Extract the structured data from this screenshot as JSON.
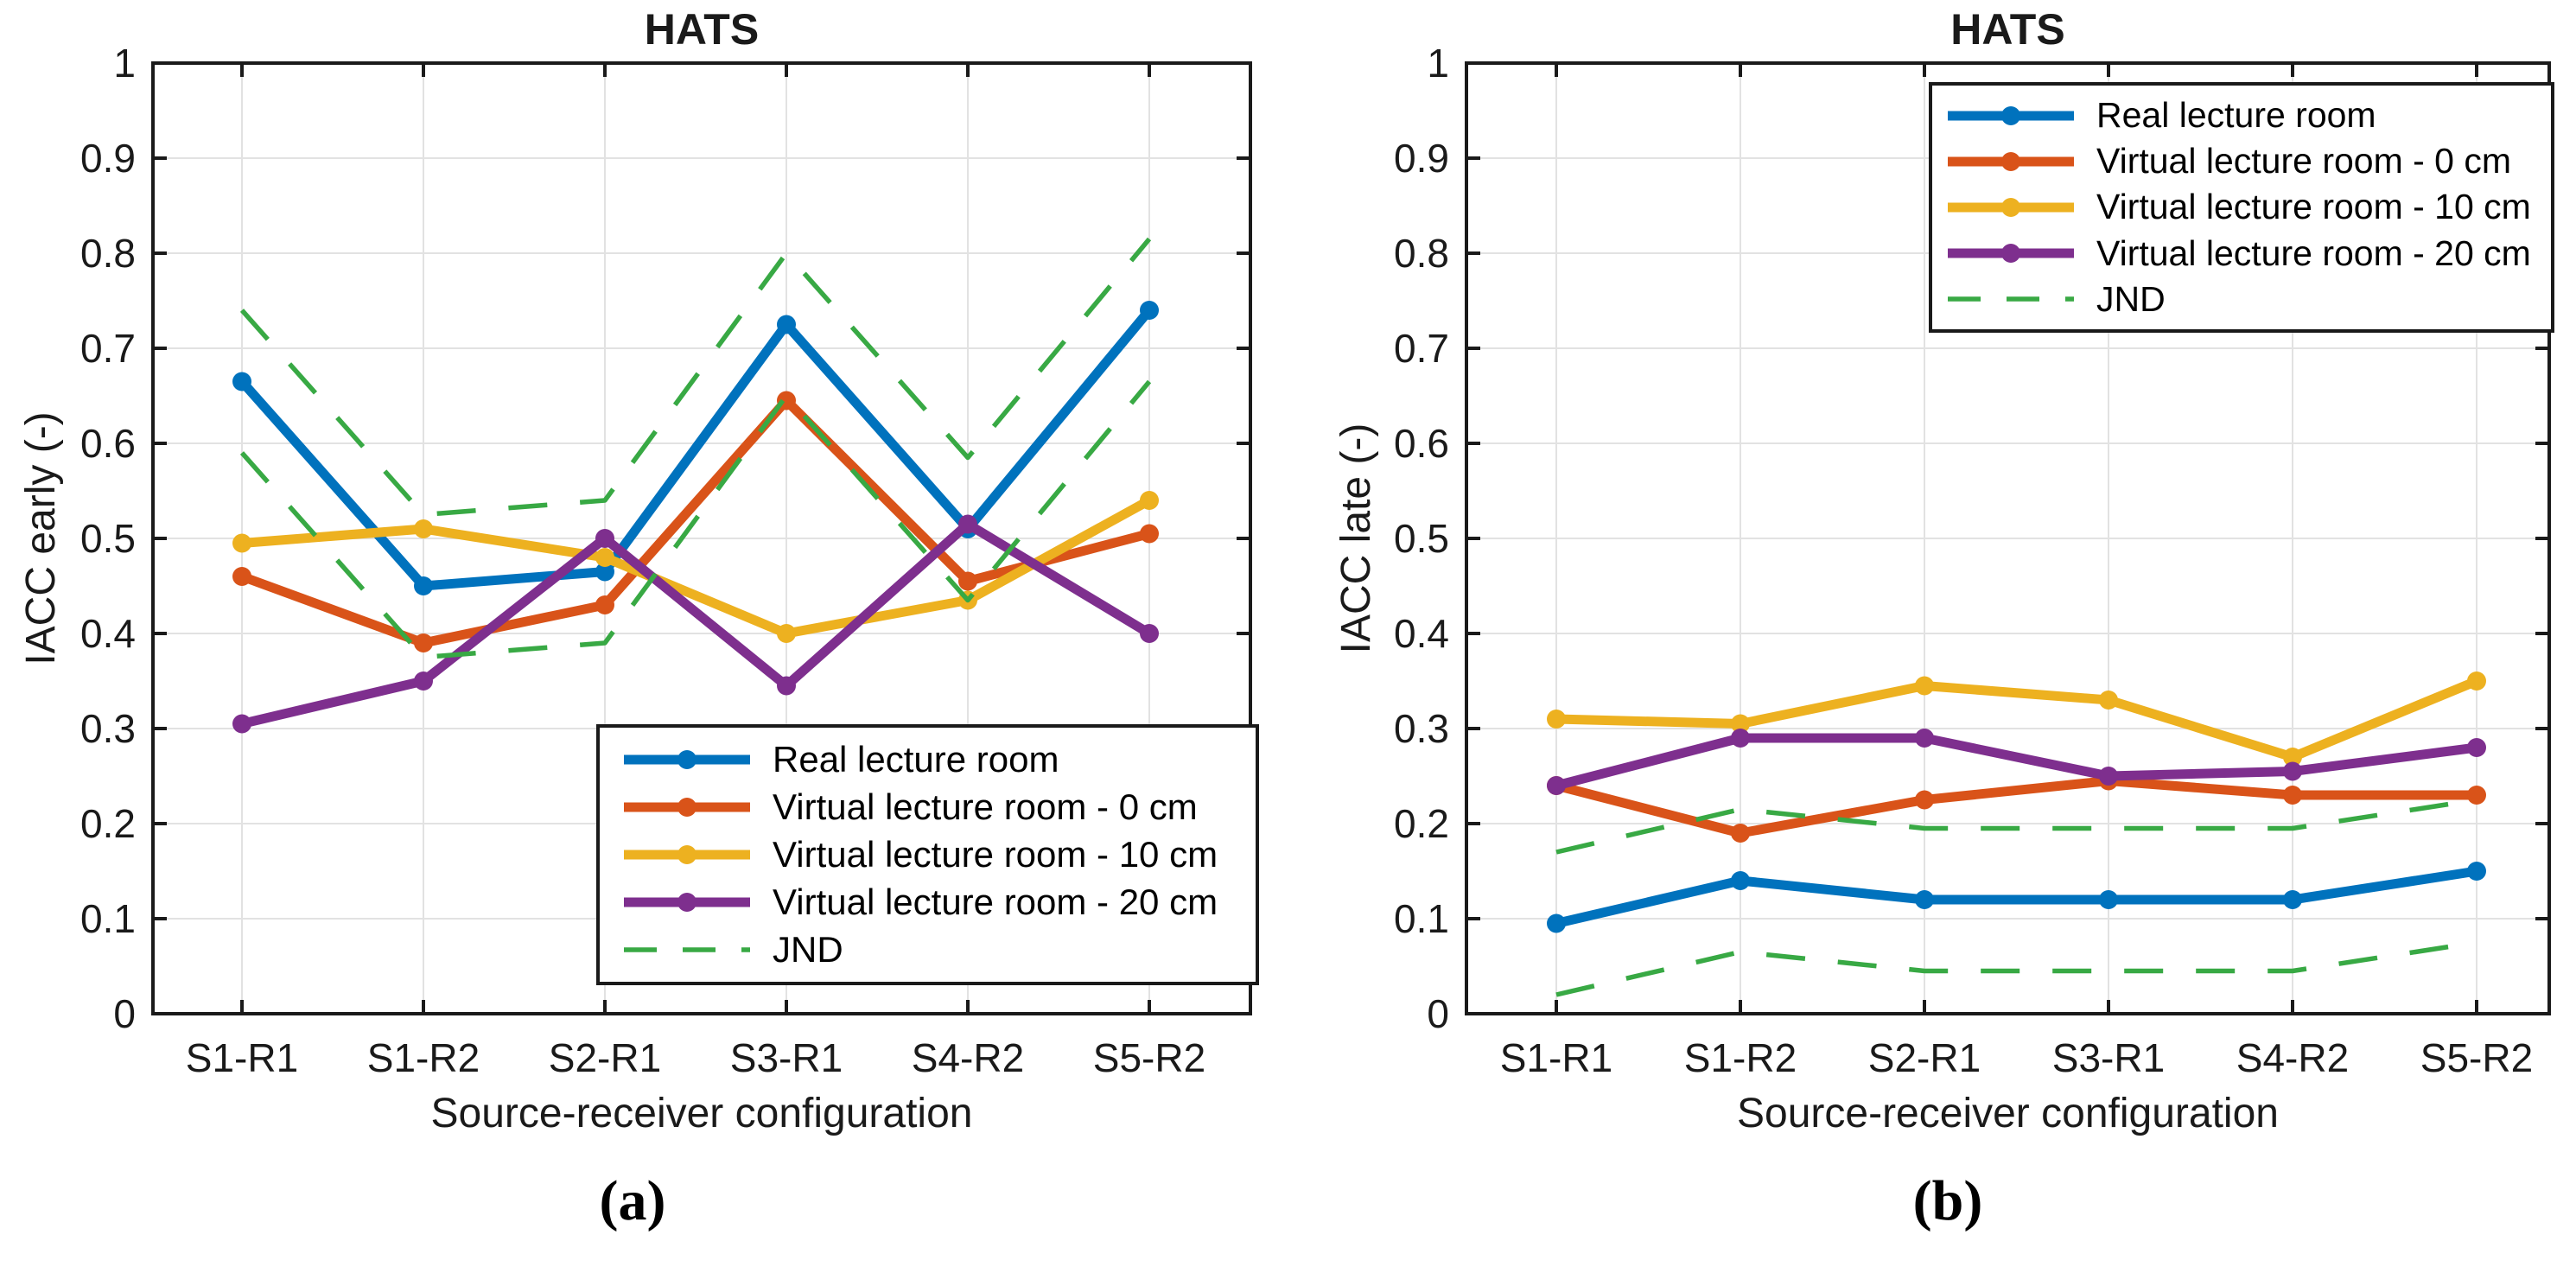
{
  "figure": {
    "captions": {
      "a": "(a)",
      "b": "(b)"
    }
  },
  "colors": {
    "real": "#0072BD",
    "virtual_0cm": "#D95319",
    "virtual_10cm": "#EDB120",
    "virtual_20cm": "#7E2F8E",
    "jnd": "#38A944",
    "grid": "#E2E2E2",
    "axis": "#1A1A1A"
  },
  "chart_data": [
    {
      "type": "line",
      "panel": "a",
      "title": "HATS",
      "xlabel": "Source-receiver configuration",
      "ylabel": "IACC early (-)",
      "ylim": [
        0,
        1
      ],
      "ytick_step": 0.1,
      "grid": true,
      "legend_position": "south-east",
      "categories": [
        "S1-R1",
        "S1-R2",
        "S2-R1",
        "S3-R1",
        "S4-R2",
        "S5-R2"
      ],
      "series": [
        {
          "name": "Real lecture room",
          "color": "#0072BD",
          "style": "solid",
          "marker": true,
          "values": [
            0.665,
            0.45,
            0.465,
            0.725,
            0.51,
            0.74
          ]
        },
        {
          "name": "Virtual lecture room - 0 cm",
          "color": "#D95319",
          "style": "solid",
          "marker": true,
          "values": [
            0.46,
            0.39,
            0.43,
            0.645,
            0.455,
            0.505
          ]
        },
        {
          "name": "Virtual lecture room - 10 cm",
          "color": "#EDB120",
          "style": "solid",
          "marker": true,
          "values": [
            0.495,
            0.51,
            0.48,
            0.4,
            0.435,
            0.54
          ]
        },
        {
          "name": "Virtual lecture room - 20 cm",
          "color": "#7E2F8E",
          "style": "solid",
          "marker": true,
          "values": [
            0.305,
            0.35,
            0.5,
            0.345,
            0.515,
            0.4
          ]
        },
        {
          "name": "JND",
          "color": "#38A944",
          "style": "dashed",
          "marker": false,
          "upper": [
            0.74,
            0.525,
            0.54,
            0.8,
            0.585,
            0.815
          ],
          "lower": [
            0.59,
            0.375,
            0.39,
            0.65,
            0.435,
            0.665
          ]
        }
      ]
    },
    {
      "type": "line",
      "panel": "b",
      "title": "HATS",
      "xlabel": "Source-receiver configuration",
      "ylabel": "IACC late (-)",
      "ylim": [
        0,
        1
      ],
      "ytick_step": 0.1,
      "grid": true,
      "legend_position": "north-east",
      "categories": [
        "S1-R1",
        "S1-R2",
        "S2-R1",
        "S3-R1",
        "S4-R2",
        "S5-R2"
      ],
      "series": [
        {
          "name": "Real lecture room",
          "color": "#0072BD",
          "style": "solid",
          "marker": true,
          "values": [
            0.095,
            0.14,
            0.12,
            0.12,
            0.12,
            0.15
          ]
        },
        {
          "name": "Virtual lecture room - 0 cm",
          "color": "#D95319",
          "style": "solid",
          "marker": true,
          "values": [
            0.24,
            0.19,
            0.225,
            0.245,
            0.23,
            0.23
          ]
        },
        {
          "name": "Virtual lecture room - 10 cm",
          "color": "#EDB120",
          "style": "solid",
          "marker": true,
          "values": [
            0.31,
            0.305,
            0.345,
            0.33,
            0.27,
            0.35
          ]
        },
        {
          "name": "Virtual lecture room - 20 cm",
          "color": "#7E2F8E",
          "style": "solid",
          "marker": true,
          "values": [
            0.24,
            0.29,
            0.29,
            0.25,
            0.255,
            0.28
          ]
        },
        {
          "name": "JND",
          "color": "#38A944",
          "style": "dashed",
          "marker": false,
          "upper": [
            0.17,
            0.215,
            0.195,
            0.195,
            0.195,
            0.225
          ],
          "lower": [
            0.02,
            0.065,
            0.045,
            0.045,
            0.045,
            0.075
          ]
        }
      ]
    }
  ]
}
